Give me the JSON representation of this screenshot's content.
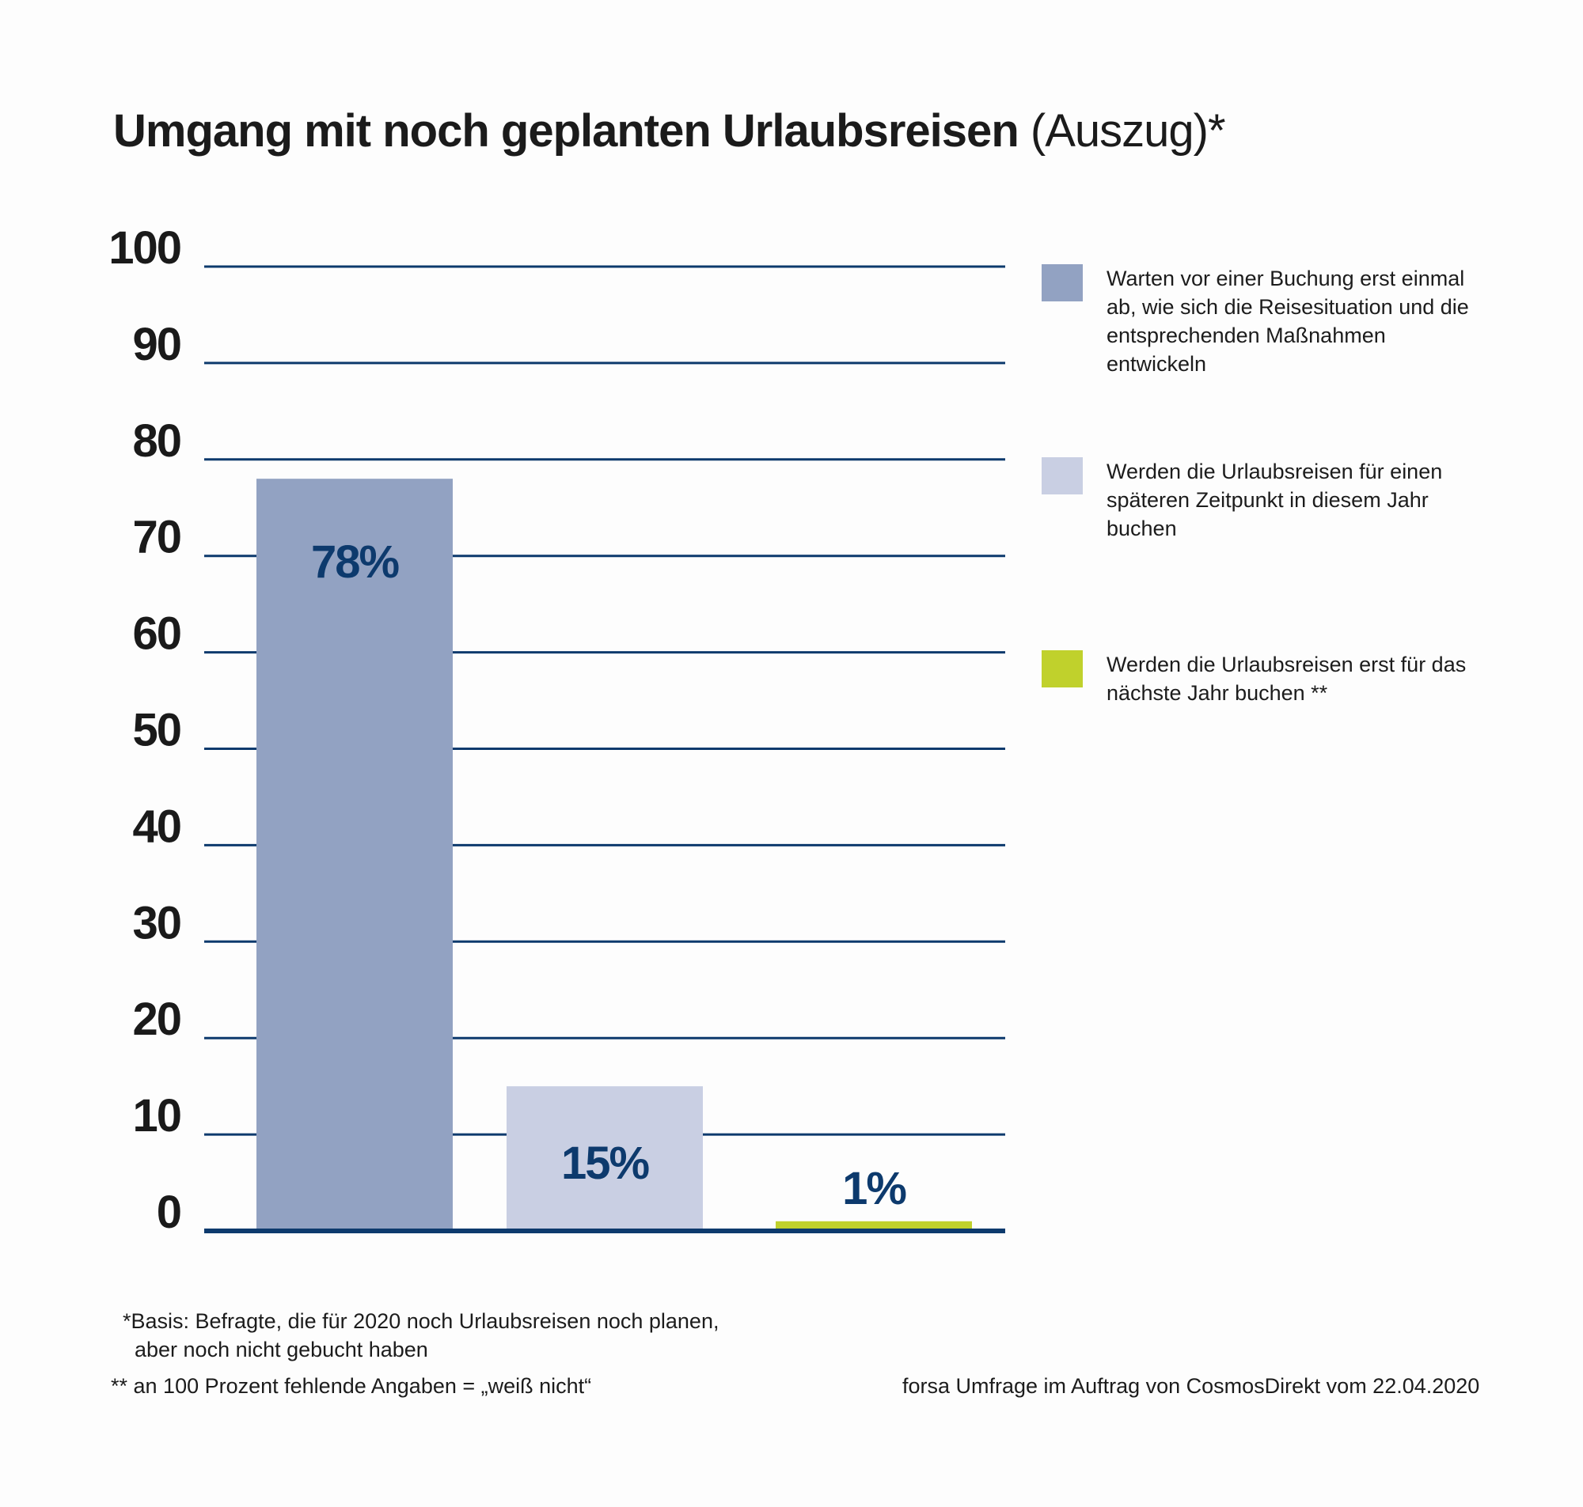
{
  "title": {
    "bold": "Umgang mit noch geplanten Urlaubsreisen",
    "light": "(Auszug)*"
  },
  "chart_data": {
    "type": "bar",
    "categories": [
      "Warten vor einer Buchung erst einmal ab, wie sich die Reisesituation und die entsprechenden Maßnahmen entwickeln",
      "Werden die Urlaubsreisen für einen späteren Zeitpunkt in diesem Jahr buchen",
      "Werden die Urlaubsreisen erst für das nächste Jahr buchen **"
    ],
    "values": [
      78,
      15,
      1
    ],
    "value_labels": [
      "78%",
      "15%",
      "1%"
    ],
    "colors": [
      "#92a2c2",
      "#c9cfe3",
      "#c0d12c"
    ],
    "ylim": [
      0,
      100
    ],
    "yticks": [
      "0",
      "10",
      "20",
      "30",
      "40",
      "50",
      "60",
      "70",
      "80",
      "90",
      "100"
    ],
    "grid": true,
    "legend_position": "right",
    "label_color": "#0d3a6d",
    "grid_color": "#0d3a6d"
  },
  "legend": [
    {
      "text": "Warten vor einer Buchung erst einmal ab, wie sich die Reisesituation und die entsprechenden Maßnahmen entwickeln",
      "color": "#92a2c2"
    },
    {
      "text": "Werden die Urlaubsreisen für einen späteren Zeitpunkt in diesem Jahr buchen",
      "color": "#c9cfe3"
    },
    {
      "text": "Werden die Urlaubsreisen erst für das nächste Jahr buchen **",
      "color": "#c0d12c"
    }
  ],
  "footnotes": {
    "basis_line1": "*Basis: Befragte, die für 2020 noch Urlaubsreisen noch planen,",
    "basis_line2": "aber noch nicht gebucht haben",
    "missing": "** an 100 Prozent fehlende Angaben = „weiß nicht“",
    "source": "forsa Umfrage im Auftrag von CosmosDirekt vom 22.04.2020"
  }
}
